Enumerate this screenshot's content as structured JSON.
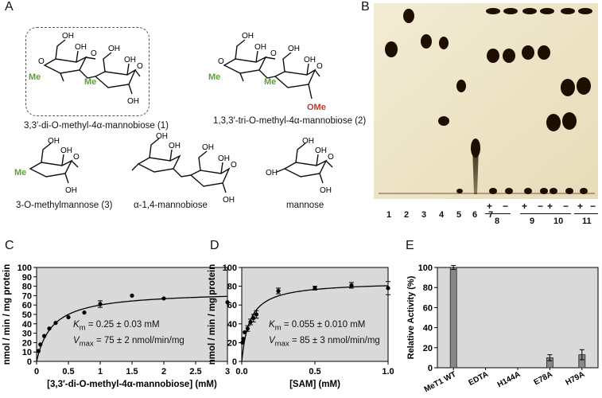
{
  "panels": {
    "A": {
      "letter": "A",
      "compounds": [
        {
          "label": "3,3′-di-O-methyl-4α-mannobiose (1)"
        },
        {
          "label": "1,3,3′-tri-O-methyl-4α-mannobiose (2)"
        },
        {
          "label": "3-O-methylmannose (3)"
        },
        {
          "label": "α-1,4-mannobiose"
        },
        {
          "label": "mannose"
        }
      ],
      "atoms": {
        "oh": "OH",
        "o": "O",
        "me": "Me",
        "ome": "OMe"
      },
      "colors": {
        "methyl_green": "#5aa52f",
        "methyl_red": "#c0392b"
      }
    },
    "B": {
      "letter": "B",
      "lanes": [
        "1",
        "2",
        "3",
        "4",
        "5",
        "6",
        "7"
      ],
      "groups": [
        {
          "label": "8",
          "signs": [
            "+",
            "−"
          ]
        },
        {
          "label": "9",
          "signs": [
            "+",
            "−"
          ]
        },
        {
          "label": "10",
          "signs": [
            "+",
            "−"
          ]
        },
        {
          "label": "11",
          "signs": [
            "+",
            "−"
          ]
        }
      ]
    },
    "C": {
      "letter": "C",
      "km_text": "K",
      "km_sub": "m",
      "km_value": " = 0.25 ± 0.03 mM",
      "vmax_text": "V",
      "vmax_sub": "max",
      "vmax_value": " = 75 ± 2 nmol/min/mg"
    },
    "D": {
      "letter": "D",
      "km_text": "K",
      "km_sub": "m",
      "km_value": " = 0.055 ± 0.010 mM",
      "vmax_text": "V",
      "vmax_sub": "max",
      "vmax_value": " = 85 ± 3 nmol/min/mg"
    },
    "E": {
      "letter": "E"
    }
  },
  "chart_data": [
    {
      "type": "scatter",
      "panel": "C",
      "xlabel": "[3,3′-di-O-methyl-4α-mannobiose] (mM)",
      "ylabel": "nmol / min / mg protein",
      "xlim": [
        0,
        3
      ],
      "ylim": [
        0,
        100
      ],
      "xticks": [
        0,
        0.5,
        1,
        1.5,
        2,
        2.5,
        3
      ],
      "xtick_labels": [
        "0",
        "0.5",
        "1",
        "1.5",
        "2",
        "2.5",
        "3"
      ],
      "yticks": [
        0,
        10,
        20,
        30,
        40,
        50,
        60,
        70,
        80,
        90,
        100
      ],
      "grid": false,
      "fit": {
        "model": "michaelis-menten",
        "km": 0.25,
        "vmax": 75
      },
      "x": [
        0.03,
        0.06,
        0.12,
        0.2,
        0.3,
        0.5,
        0.75,
        1.0,
        1.5,
        2.0,
        3.0
      ],
      "y": [
        11,
        18,
        27,
        35,
        41,
        47,
        52,
        61,
        70,
        67,
        63
      ],
      "err": [
        0,
        0,
        0,
        0,
        0,
        0,
        0,
        3.5,
        0,
        0,
        0
      ]
    },
    {
      "type": "scatter",
      "panel": "D",
      "xlabel": "[SAM] (mM)",
      "ylabel": "nmol / min / mg protein",
      "xlim": [
        0,
        1.0
      ],
      "ylim": [
        0,
        100
      ],
      "xticks": [
        0,
        0.5,
        1.0
      ],
      "xtick_labels": [
        "0.0",
        "0.5",
        "1.0"
      ],
      "yticks": [
        0,
        20,
        40,
        60,
        80,
        100
      ],
      "grid": false,
      "fit": {
        "model": "michaelis-menten",
        "km": 0.055,
        "vmax": 85
      },
      "x": [
        0.005,
        0.01,
        0.02,
        0.04,
        0.06,
        0.08,
        0.1,
        0.25,
        0.5,
        0.75,
        1.0
      ],
      "y": [
        20,
        24,
        31,
        35,
        42,
        46,
        50,
        75,
        78,
        81,
        78
      ],
      "err": [
        0,
        0,
        0,
        3,
        3,
        4,
        4,
        3,
        2,
        3,
        7
      ]
    },
    {
      "type": "bar",
      "panel": "E",
      "ylabel": "Relative Activity (%)",
      "categories": [
        "MeT1 WT",
        "EDTA",
        "H144A",
        "E78A",
        "H79A"
      ],
      "values": [
        100,
        0,
        0,
        10,
        13
      ],
      "err": [
        2,
        0,
        0,
        3,
        5
      ],
      "ylim": [
        0,
        100
      ],
      "yticks": [
        0,
        20,
        40,
        60,
        80,
        100
      ],
      "grid": false,
      "bar_color": "#888888"
    }
  ]
}
